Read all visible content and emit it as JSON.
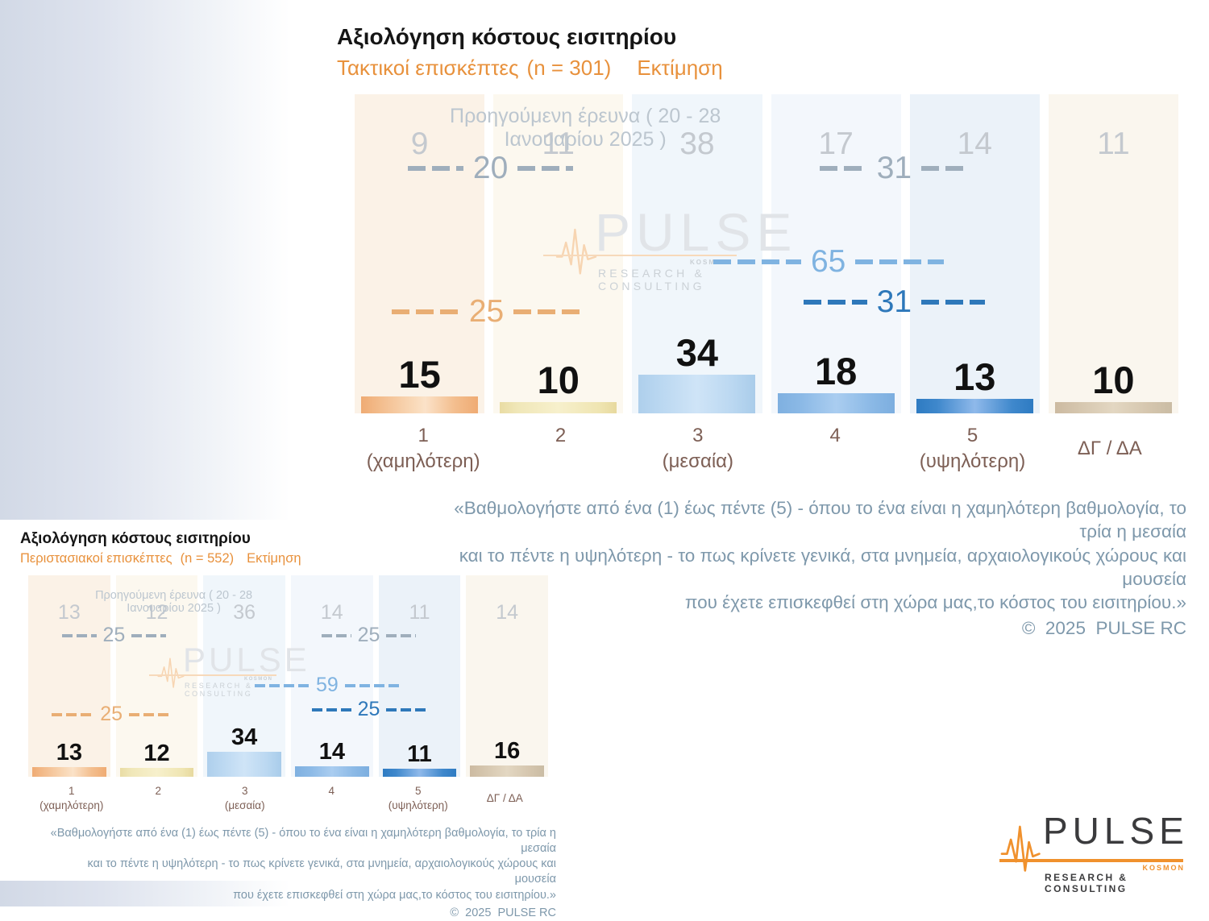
{
  "page": {
    "footnote_lines": [
      "«Βαθμολογήστε από ένα (1) έως πέντε (5) - όπου το ένα είναι η χαμηλότερη βαθμολογία, το τρία η μεσαία",
      "και το πέντε η υψηλότερη - το πως κρίνετε γενικά, στα μνημεία, αρχαιολογικούς χώρους και μουσεία",
      "που έχετε επισκεφθεί στη χώρα μας,το κόστος του εισιτηρίου.»"
    ],
    "copyright": "©  2025  PULSE RC"
  },
  "watermark": {
    "brand": "PULSE",
    "kosmon": "KOSMON",
    "sub": "RESEARCH & CONSULTING"
  },
  "logo": {
    "brand": "PULSE",
    "kosmon": "KOSMON",
    "sub": "RESEARCH & CONSULTING"
  },
  "colors": {
    "accent_orange": "#E8913C",
    "previous_gray": "#C4C9CF",
    "aggregate_gray": "#9FAEBC",
    "aggregate_orange": "#E9AE74",
    "aggregate_light_blue": "#7FB3E1",
    "aggregate_dark_blue": "#2E78BA",
    "current_black": "#111111",
    "category_brown": "#7D5F55",
    "footnote_blue_gray": "#7E98AB",
    "logo_orange": "#F0912D",
    "bar_colors": [
      "#EFAB73",
      "#EFE5B2",
      "#BBD8F1",
      "#8BB9E6",
      "#3F88CC",
      "#D5C6AE"
    ]
  },
  "chart_data": [
    {
      "type": "bar",
      "title": "Αξιολόγηση κόστους εισιτηρίου",
      "subtitle_group": "Τακτικοί επισκέπτες",
      "subtitle_n": "(n = 301)",
      "subtitle_metric": "Εκτίμηση",
      "previous_survey_label": "Προηγούμενη έρευνα ( 20 - 28 Ιανουαρίου 2025 )",
      "categories": [
        "1",
        "2",
        "3",
        "4",
        "5",
        "ΔΓ / ΔΑ"
      ],
      "category_sublabels": [
        "(χαμηλότερη)",
        "",
        "(μεσαία)",
        "",
        "(υψηλότερη)",
        ""
      ],
      "values_current": [
        15,
        10,
        34,
        18,
        13,
        10
      ],
      "values_previous": [
        9,
        11,
        38,
        17,
        14,
        11
      ],
      "aggregates": {
        "previous_1_2": 20,
        "previous_4_5": 31,
        "current_1_2": 25,
        "current_3_4_5": 65,
        "current_4_5": 31
      },
      "ylim": [
        0,
        100
      ],
      "grid": false,
      "legend_position": "none"
    },
    {
      "type": "bar",
      "title": "Αξιολόγηση κόστους εισιτηρίου",
      "subtitle_group": "Περιστασιακοί επισκέπτες",
      "subtitle_n": "(n = 552)",
      "subtitle_metric": "Εκτίμηση",
      "previous_survey_label": "Προηγούμενη έρευνα ( 20 - 28 Ιανουαρίου 2025 )",
      "categories": [
        "1",
        "2",
        "3",
        "4",
        "5",
        "ΔΓ / ΔΑ"
      ],
      "category_sublabels": [
        "(χαμηλότερη)",
        "",
        "(μεσαία)",
        "",
        "(υψηλότερη)",
        ""
      ],
      "values_current": [
        13,
        12,
        34,
        14,
        11,
        16
      ],
      "values_previous": [
        13,
        12,
        36,
        14,
        11,
        14
      ],
      "aggregates": {
        "previous_1_2": 25,
        "previous_4_5": 25,
        "current_1_2": 25,
        "current_3_4_5": 59,
        "current_4_5": 25
      },
      "ylim": [
        0,
        100
      ],
      "grid": false,
      "legend_position": "none"
    }
  ]
}
